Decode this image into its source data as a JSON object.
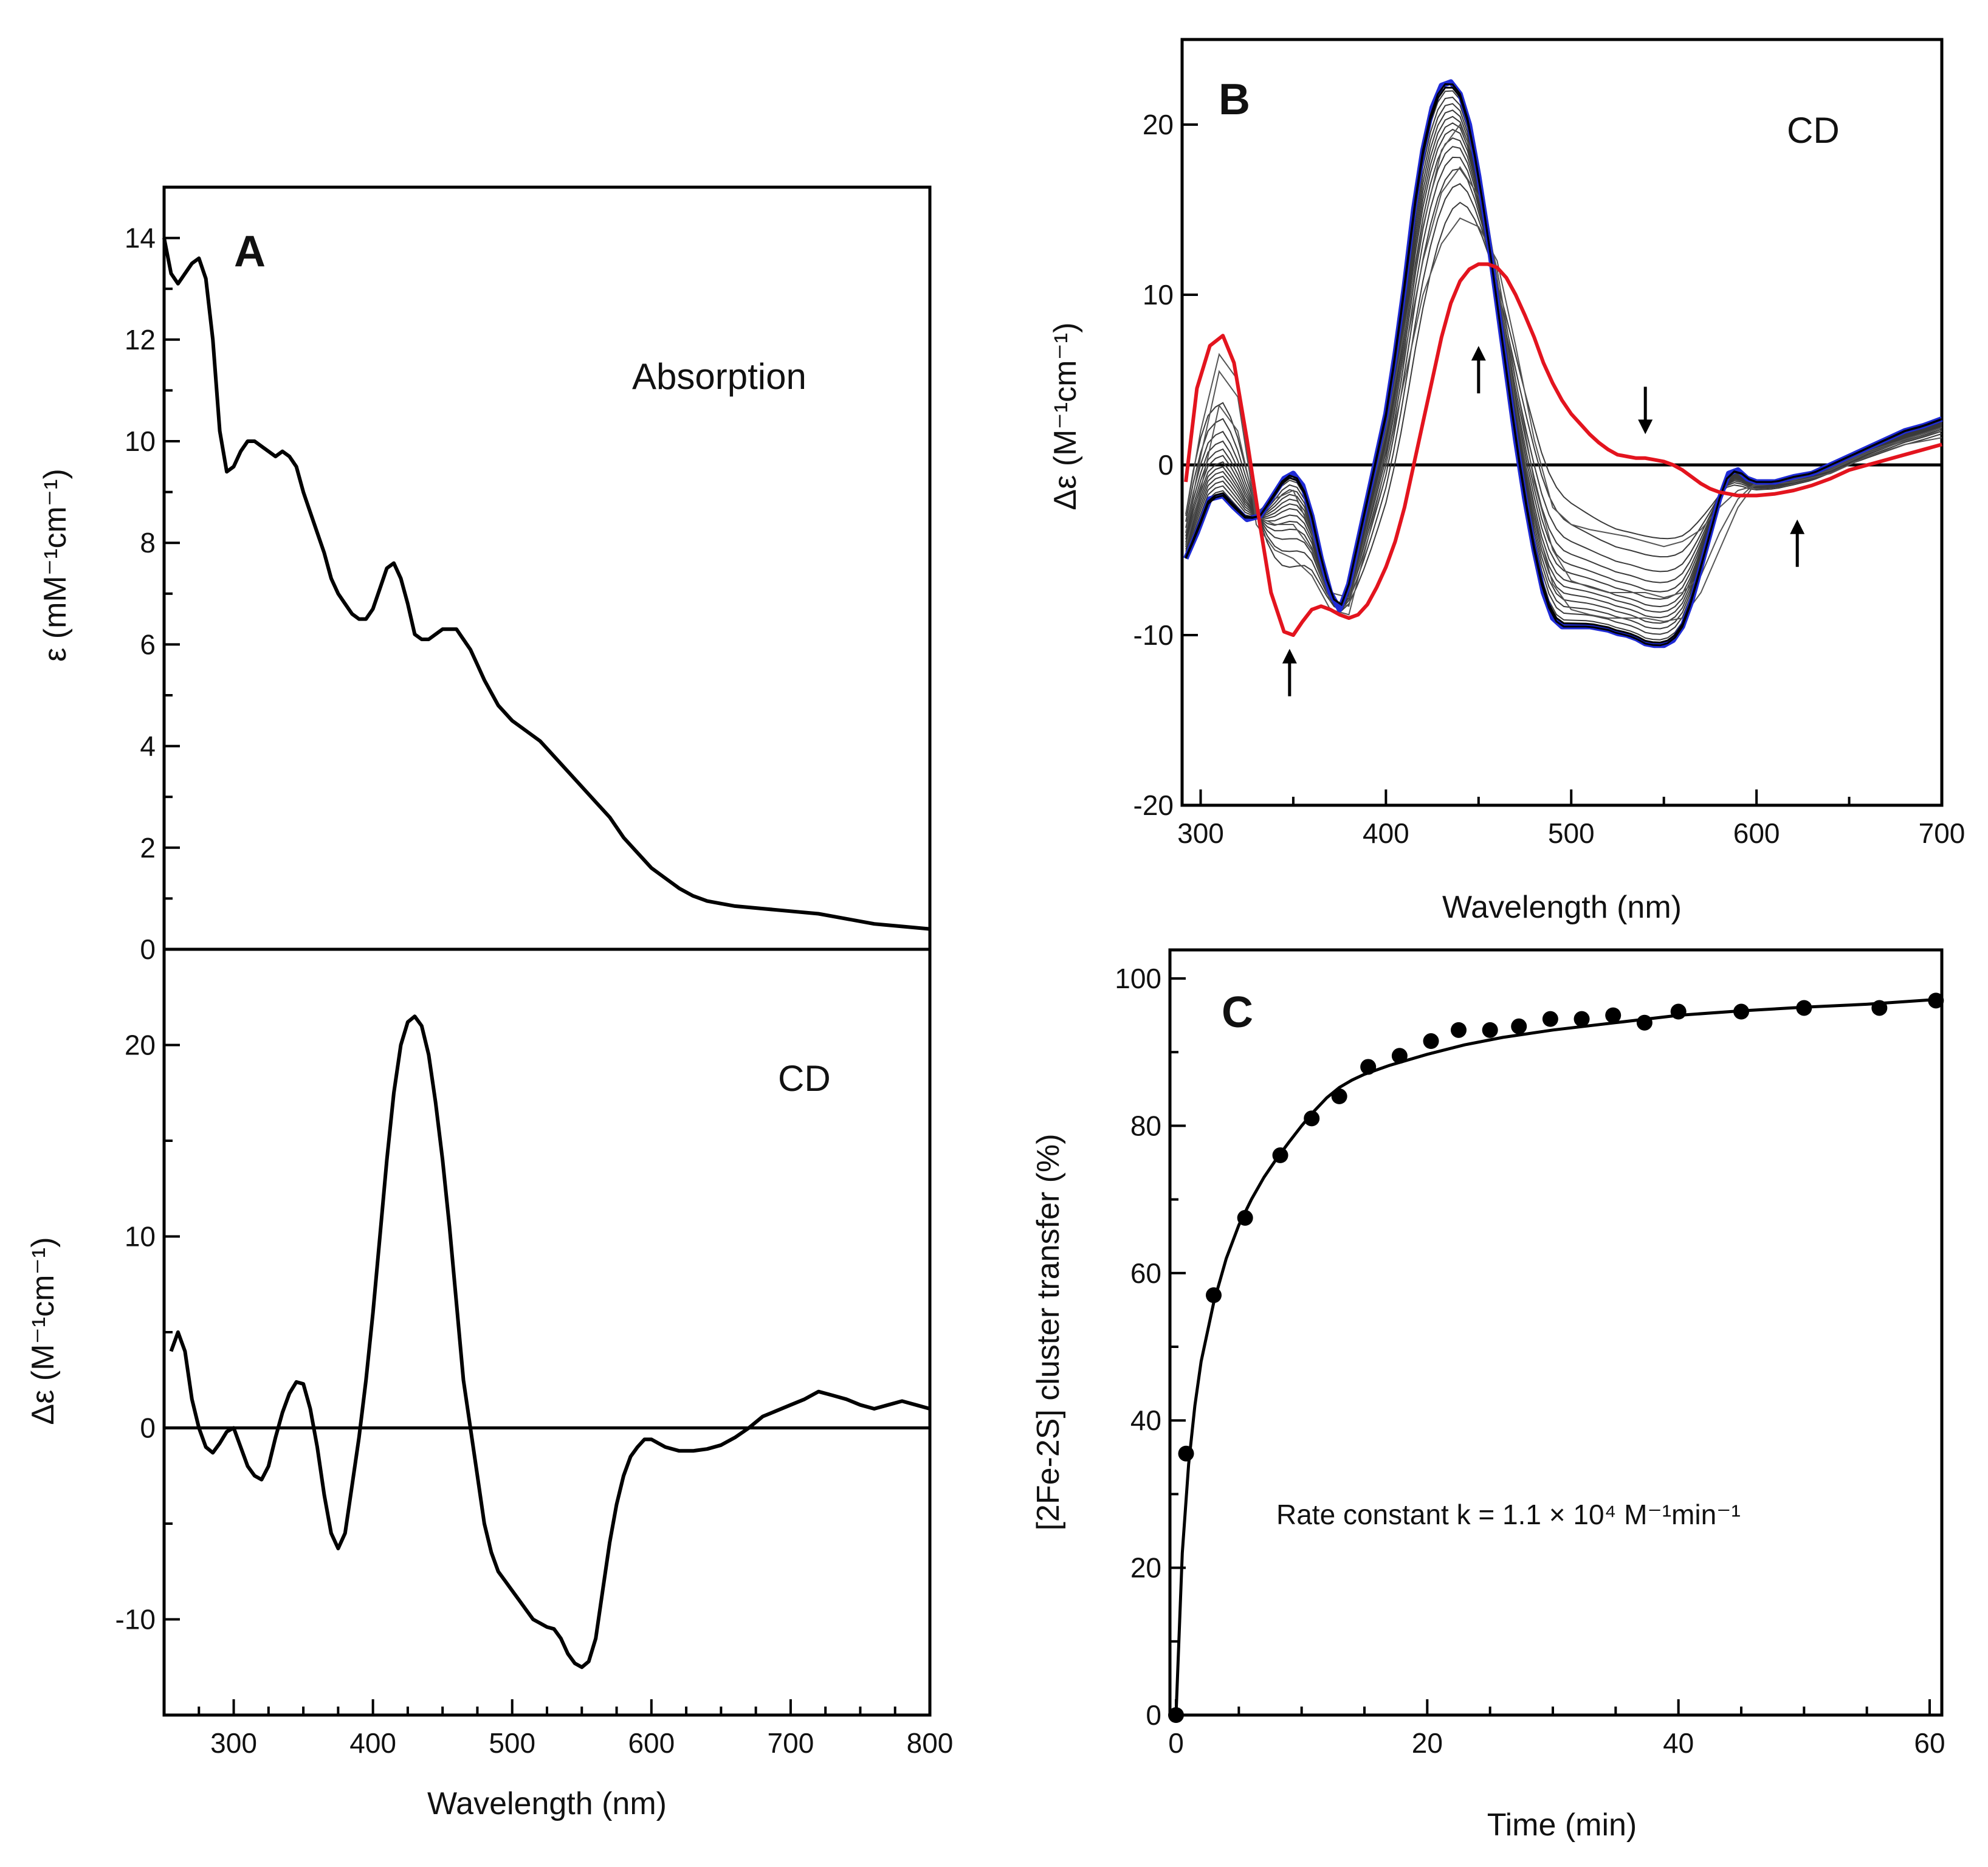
{
  "chart_data": [
    {
      "id": "A_absorption",
      "type": "line",
      "panel": "A",
      "label": "Absorption",
      "xlabel": "",
      "ylabel": "ε (mM⁻¹cm⁻¹)",
      "xlim": [
        250,
        800
      ],
      "ylim": [
        0,
        15
      ],
      "yticks": [
        0,
        2,
        4,
        6,
        8,
        10,
        12,
        14
      ],
      "series": [
        {
          "name": "absorption",
          "color": "#000000",
          "x": [
            250,
            255,
            260,
            265,
            270,
            275,
            280,
            285,
            290,
            295,
            300,
            305,
            310,
            315,
            320,
            325,
            330,
            335,
            340,
            345,
            350,
            355,
            360,
            365,
            370,
            375,
            380,
            385,
            390,
            395,
            400,
            405,
            410,
            415,
            420,
            425,
            430,
            435,
            440,
            445,
            450,
            455,
            460,
            465,
            470,
            475,
            480,
            490,
            500,
            510,
            520,
            530,
            540,
            550,
            560,
            570,
            580,
            590,
            600,
            610,
            620,
            630,
            640,
            650,
            660,
            680,
            700,
            720,
            740,
            760,
            780,
            800
          ],
          "y": [
            14.0,
            13.3,
            13.1,
            13.3,
            13.5,
            13.6,
            13.2,
            12.0,
            10.2,
            9.4,
            9.5,
            9.8,
            10.0,
            10.0,
            9.9,
            9.8,
            9.7,
            9.8,
            9.7,
            9.5,
            9.0,
            8.6,
            8.2,
            7.8,
            7.3,
            7.0,
            6.8,
            6.6,
            6.5,
            6.5,
            6.7,
            7.1,
            7.5,
            7.6,
            7.3,
            6.8,
            6.2,
            6.1,
            6.1,
            6.2,
            6.3,
            6.3,
            6.3,
            6.1,
            5.9,
            5.6,
            5.3,
            4.8,
            4.5,
            4.3,
            4.1,
            3.8,
            3.5,
            3.2,
            2.9,
            2.6,
            2.2,
            1.9,
            1.6,
            1.4,
            1.2,
            1.05,
            0.95,
            0.9,
            0.85,
            0.8,
            0.75,
            0.7,
            0.6,
            0.5,
            0.45,
            0.4
          ]
        }
      ]
    },
    {
      "id": "A_cd",
      "type": "line",
      "panel": "A",
      "label": "CD",
      "xlabel": "Wavelength (nm)",
      "ylabel": "Δε (M⁻¹cm⁻¹)",
      "xlim": [
        250,
        800
      ],
      "ylim": [
        -15,
        25
      ],
      "xticks": [
        300,
        400,
        500,
        600,
        700,
        800
      ],
      "yticks": [
        -10,
        0,
        10,
        20
      ],
      "series": [
        {
          "name": "cd",
          "color": "#000000",
          "x": [
            255,
            260,
            265,
            270,
            275,
            280,
            285,
            290,
            295,
            300,
            305,
            310,
            315,
            320,
            325,
            330,
            335,
            340,
            345,
            350,
            355,
            360,
            365,
            370,
            375,
            380,
            385,
            390,
            395,
            400,
            405,
            410,
            415,
            420,
            425,
            430,
            435,
            440,
            445,
            450,
            455,
            460,
            465,
            470,
            475,
            480,
            485,
            490,
            495,
            500,
            505,
            510,
            515,
            520,
            525,
            530,
            535,
            540,
            545,
            550,
            555,
            560,
            565,
            570,
            575,
            580,
            585,
            590,
            595,
            600,
            605,
            610,
            620,
            630,
            640,
            650,
            660,
            670,
            680,
            690,
            700,
            710,
            720,
            730,
            740,
            750,
            760,
            770,
            780,
            790,
            800
          ],
          "y": [
            4.0,
            5.0,
            4.0,
            1.5,
            0.0,
            -1.0,
            -1.3,
            -0.8,
            -0.2,
            0.0,
            -1.0,
            -2.0,
            -2.5,
            -2.7,
            -2.0,
            -0.5,
            0.8,
            1.8,
            2.4,
            2.3,
            1.0,
            -1.0,
            -3.5,
            -5.5,
            -6.3,
            -5.5,
            -3.0,
            -0.5,
            2.5,
            6.0,
            10.0,
            14.0,
            17.5,
            20.0,
            21.2,
            21.5,
            21.0,
            19.5,
            17.0,
            14.0,
            10.5,
            6.5,
            2.5,
            0.0,
            -2.5,
            -5.0,
            -6.5,
            -7.5,
            -8.0,
            -8.5,
            -9.0,
            -9.5,
            -10.0,
            -10.2,
            -10.4,
            -10.5,
            -11.0,
            -11.8,
            -12.3,
            -12.5,
            -12.2,
            -11.0,
            -8.5,
            -6.0,
            -4.0,
            -2.5,
            -1.5,
            -1.0,
            -0.6,
            -0.6,
            -0.8,
            -1.0,
            -1.2,
            -1.2,
            -1.1,
            -0.9,
            -0.5,
            0.0,
            0.6,
            0.9,
            1.2,
            1.5,
            1.9,
            1.7,
            1.5,
            1.2,
            1.0,
            1.2,
            1.4,
            1.2,
            1.0
          ]
        }
      ]
    },
    {
      "id": "B",
      "type": "line",
      "panel": "B",
      "label": "CD",
      "xlabel": "Wavelength (nm)",
      "ylabel": "Δε (M⁻¹cm⁻¹)",
      "xlim": [
        290,
        700
      ],
      "ylim": [
        -20,
        25
      ],
      "xticks": [
        300,
        400,
        500,
        600,
        700
      ],
      "yticks": [
        -20,
        -10,
        0,
        10,
        20
      ],
      "arrows": [
        {
          "x": 348,
          "y": -12.2,
          "direction": "up"
        },
        {
          "x": 450,
          "y": 5.6,
          "direction": "up"
        },
        {
          "x": 540,
          "y": 3.2,
          "direction": "down"
        },
        {
          "x": 622,
          "y": -4.6,
          "direction": "up"
        }
      ],
      "series": [
        {
          "name": "initial",
          "color": "#1f2bd6",
          "x": [
            292,
            298,
            305,
            312,
            318,
            325,
            332,
            338,
            345,
            350,
            355,
            360,
            365,
            370,
            375,
            380,
            385,
            390,
            395,
            400,
            405,
            410,
            415,
            420,
            425,
            430,
            435,
            440,
            445,
            450,
            455,
            460,
            465,
            470,
            475,
            480,
            485,
            490,
            495,
            500,
            505,
            510,
            515,
            520,
            525,
            530,
            535,
            540,
            545,
            550,
            555,
            560,
            565,
            570,
            575,
            580,
            585,
            590,
            595,
            600,
            610,
            620,
            630,
            640,
            650,
            660,
            670,
            680,
            690,
            700
          ],
          "y": [
            -5.5,
            -4.0,
            -2.0,
            -1.8,
            -2.5,
            -3.2,
            -3.0,
            -2.0,
            -0.8,
            -0.5,
            -1.2,
            -3.0,
            -5.5,
            -7.5,
            -8.5,
            -7.0,
            -4.5,
            -2.0,
            0.5,
            3.0,
            6.5,
            10.5,
            15.0,
            18.5,
            21.0,
            22.3,
            22.5,
            21.8,
            20.0,
            17.0,
            13.5,
            9.5,
            5.5,
            1.5,
            -2.0,
            -5.0,
            -7.5,
            -9.0,
            -9.5,
            -9.5,
            -9.5,
            -9.5,
            -9.6,
            -9.7,
            -9.9,
            -10.0,
            -10.2,
            -10.5,
            -10.6,
            -10.6,
            -10.3,
            -9.5,
            -8.0,
            -6.0,
            -4.0,
            -2.0,
            -0.5,
            -0.3,
            -0.8,
            -1.0,
            -1.0,
            -0.7,
            -0.5,
            0.0,
            0.5,
            1.0,
            1.5,
            2.0,
            2.3,
            2.7
          ]
        },
        {
          "name": "intermediate-1",
          "color": "#555555",
          "x": [
            292,
            300,
            310,
            320,
            330,
            340,
            350,
            360,
            370,
            380,
            390,
            400,
            410,
            420,
            430,
            440,
            450,
            460,
            470,
            480,
            490,
            500,
            510,
            520,
            530,
            540,
            550,
            560,
            570,
            580,
            590,
            600,
            620,
            640,
            660,
            680,
            700
          ],
          "y": [
            -4.8,
            -1.5,
            3.5,
            2.0,
            -2.8,
            -2.0,
            -1.5,
            -4.0,
            -7.5,
            -7.8,
            -2.5,
            2.0,
            8.0,
            14.0,
            18.5,
            20.0,
            17.5,
            11.0,
            3.5,
            -3.0,
            -7.0,
            -8.5,
            -8.8,
            -9.0,
            -9.0,
            -9.0,
            -9.2,
            -9.0,
            -7.5,
            -5.0,
            -2.5,
            -1.0,
            -0.8,
            -0.2,
            0.8,
            1.5,
            2.2
          ]
        },
        {
          "name": "intermediate-2",
          "color": "#555555",
          "x": [
            292,
            300,
            310,
            320,
            330,
            340,
            350,
            360,
            370,
            380,
            390,
            400,
            410,
            420,
            430,
            440,
            450,
            460,
            470,
            480,
            490,
            500,
            510,
            520,
            530,
            540,
            550,
            560,
            570,
            580,
            590,
            600,
            620,
            640,
            660,
            680,
            700
          ],
          "y": [
            -4.0,
            0.5,
            5.5,
            4.0,
            -3.0,
            -3.5,
            -3.5,
            -5.0,
            -8.0,
            -8.3,
            -3.5,
            1.0,
            6.5,
            12.0,
            16.0,
            17.5,
            15.8,
            11.5,
            5.0,
            -1.0,
            -5.0,
            -6.8,
            -7.2,
            -7.5,
            -7.5,
            -7.5,
            -7.8,
            -7.5,
            -6.5,
            -4.0,
            -2.0,
            -1.0,
            -0.9,
            -0.3,
            0.7,
            1.4,
            2.0
          ]
        },
        {
          "name": "intermediate-3",
          "color": "#555555",
          "x": [
            292,
            300,
            310,
            320,
            330,
            340,
            350,
            360,
            370,
            380,
            390,
            400,
            410,
            420,
            430,
            440,
            450,
            460,
            470,
            480,
            490,
            500,
            510,
            520,
            530,
            540,
            550,
            560,
            570,
            580,
            590,
            600,
            620,
            640,
            660,
            680,
            700
          ],
          "y": [
            -3.0,
            2.0,
            6.5,
            5.0,
            -3.5,
            -5.0,
            -5.5,
            -6.5,
            -8.5,
            -8.8,
            -4.5,
            0.0,
            5.0,
            10.0,
            13.0,
            14.5,
            14.0,
            12.0,
            7.0,
            1.5,
            -2.5,
            -3.5,
            -3.8,
            -4.0,
            -4.2,
            -4.5,
            -4.8,
            -4.5,
            -3.8,
            -2.5,
            -1.5,
            -1.2,
            -1.0,
            -0.5,
            0.5,
            1.2,
            1.6
          ]
        },
        {
          "name": "final",
          "color": "#e3141e",
          "x": [
            292,
            298,
            305,
            312,
            318,
            325,
            332,
            338,
            345,
            350,
            355,
            360,
            365,
            370,
            375,
            380,
            385,
            390,
            395,
            400,
            405,
            410,
            415,
            420,
            425,
            430,
            435,
            440,
            445,
            450,
            455,
            460,
            465,
            470,
            475,
            480,
            485,
            490,
            495,
            500,
            505,
            510,
            515,
            520,
            525,
            530,
            535,
            540,
            545,
            550,
            555,
            560,
            565,
            570,
            575,
            580,
            585,
            590,
            595,
            600,
            610,
            620,
            630,
            640,
            650,
            660,
            670,
            680,
            690,
            700
          ],
          "y": [
            -1.0,
            4.5,
            7.0,
            7.6,
            6.0,
            1.5,
            -3.5,
            -7.5,
            -9.8,
            -10.0,
            -9.2,
            -8.5,
            -8.3,
            -8.5,
            -8.8,
            -9.0,
            -8.8,
            -8.2,
            -7.2,
            -6.0,
            -4.5,
            -2.5,
            0.0,
            2.5,
            5.0,
            7.5,
            9.5,
            10.8,
            11.5,
            11.8,
            11.8,
            11.6,
            11.0,
            10.0,
            8.8,
            7.5,
            6.0,
            4.8,
            3.8,
            3.0,
            2.4,
            1.8,
            1.3,
            0.9,
            0.6,
            0.5,
            0.4,
            0.4,
            0.3,
            0.2,
            0.0,
            -0.3,
            -0.7,
            -1.1,
            -1.4,
            -1.6,
            -1.7,
            -1.8,
            -1.8,
            -1.8,
            -1.7,
            -1.5,
            -1.2,
            -0.8,
            -0.3,
            0.0,
            0.3,
            0.6,
            0.9,
            1.2
          ]
        }
      ]
    },
    {
      "id": "C",
      "type": "scatter",
      "panel": "C",
      "xlabel": "Time (min)",
      "ylabel": "[2Fe-2S] cluster transfer (%)",
      "xlim": [
        -1,
        61
      ],
      "ylim": [
        0,
        105
      ],
      "xticks": [
        0,
        20,
        40,
        60
      ],
      "yticks": [
        0,
        20,
        40,
        60,
        80,
        100
      ],
      "annotation": "Rate constant k = 1.1 × 10⁴ M⁻¹min⁻¹",
      "points": {
        "x": [
          0,
          0.8,
          3,
          5.5,
          8.3,
          10.8,
          13,
          15.3,
          17.8,
          20.3,
          22.5,
          25,
          27.3,
          29.8,
          32.3,
          34.8,
          37.3,
          40,
          45,
          50,
          56,
          60.5
        ],
        "y": [
          0,
          35.5,
          57,
          67.5,
          76,
          81,
          84,
          88,
          89.5,
          91.5,
          93,
          93,
          93.5,
          94.5,
          94.5,
          95,
          94,
          95.5,
          95.5,
          96,
          96,
          97
        ]
      },
      "fit": {
        "x": [
          0,
          0.5,
          1,
          1.5,
          2,
          3,
          4,
          5,
          6,
          7,
          8,
          9,
          10,
          11,
          12,
          13,
          14,
          15,
          17,
          20,
          23,
          26,
          30,
          35,
          40,
          45,
          50,
          55,
          61
        ],
        "y": [
          0,
          22,
          34,
          42,
          48,
          56,
          62,
          66.5,
          70,
          73,
          75.5,
          77.8,
          80,
          82,
          83.8,
          85.2,
          86.2,
          87,
          88.2,
          89.7,
          91,
          92,
          93,
          94,
          95,
          95.6,
          96.1,
          96.5,
          97.2
        ]
      }
    }
  ]
}
